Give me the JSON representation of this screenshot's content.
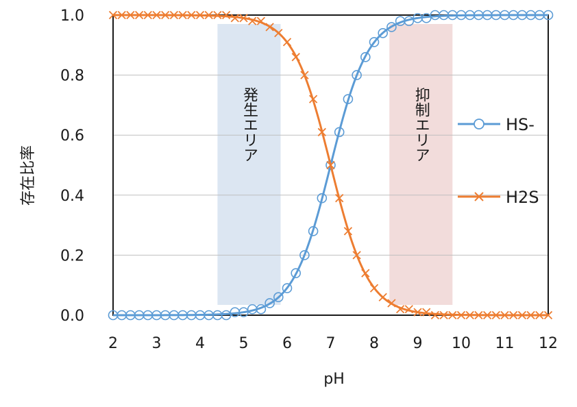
{
  "chart_data": {
    "type": "line",
    "xlabel": "pH",
    "ylabel": "存在比率",
    "xlim": [
      2,
      12
    ],
    "ylim": [
      0,
      1
    ],
    "xticks": [
      "2",
      "3",
      "4",
      "5",
      "6",
      "7",
      "8",
      "9",
      "10",
      "11",
      "12"
    ],
    "yticks": [
      "0.0",
      "0.2",
      "0.4",
      "0.6",
      "0.8",
      "1.0"
    ],
    "grid": "horizontal",
    "legend": "right",
    "pKa": 7.0,
    "series": [
      {
        "name": "HS-",
        "color": "#5b9bd5",
        "marker": "circle",
        "x": [
          2.0,
          2.2,
          2.4,
          2.6,
          2.8,
          3.0,
          3.2,
          3.4,
          3.6,
          3.8,
          4.0,
          4.2,
          4.4,
          4.6,
          4.8,
          5.0,
          5.2,
          5.4,
          5.6,
          5.8,
          6.0,
          6.2,
          6.4,
          6.6,
          6.8,
          7.0,
          7.2,
          7.4,
          7.6,
          7.8,
          8.0,
          8.2,
          8.4,
          8.6,
          8.8,
          9.0,
          9.2,
          9.4,
          9.6,
          9.8,
          10.0,
          10.2,
          10.4,
          10.6,
          10.8,
          11.0,
          11.2,
          11.4,
          11.6,
          11.8,
          12.0
        ],
        "y": [
          0.0,
          0.0,
          0.0,
          0.0,
          0.0,
          0.0,
          0.0,
          0.0,
          0.0,
          0.0,
          0.0,
          0.0,
          0.0,
          0.0,
          0.01,
          0.01,
          0.02,
          0.02,
          0.04,
          0.06,
          0.09,
          0.14,
          0.2,
          0.28,
          0.39,
          0.5,
          0.61,
          0.72,
          0.8,
          0.86,
          0.91,
          0.94,
          0.96,
          0.98,
          0.98,
          0.99,
          0.99,
          1.0,
          1.0,
          1.0,
          1.0,
          1.0,
          1.0,
          1.0,
          1.0,
          1.0,
          1.0,
          1.0,
          1.0,
          1.0,
          1.0
        ]
      },
      {
        "name": "H2S",
        "color": "#ed7d31",
        "marker": "x",
        "x": [
          2.0,
          2.2,
          2.4,
          2.6,
          2.8,
          3.0,
          3.2,
          3.4,
          3.6,
          3.8,
          4.0,
          4.2,
          4.4,
          4.6,
          4.8,
          5.0,
          5.2,
          5.4,
          5.6,
          5.8,
          6.0,
          6.2,
          6.4,
          6.6,
          6.8,
          7.0,
          7.2,
          7.4,
          7.6,
          7.8,
          8.0,
          8.2,
          8.4,
          8.6,
          8.8,
          9.0,
          9.2,
          9.4,
          9.6,
          9.8,
          10.0,
          10.2,
          10.4,
          10.6,
          10.8,
          11.0,
          11.2,
          11.4,
          11.6,
          11.8,
          12.0
        ],
        "y": [
          1.0,
          1.0,
          1.0,
          1.0,
          1.0,
          1.0,
          1.0,
          1.0,
          1.0,
          1.0,
          1.0,
          1.0,
          1.0,
          1.0,
          0.99,
          0.99,
          0.98,
          0.98,
          0.96,
          0.94,
          0.91,
          0.86,
          0.8,
          0.72,
          0.61,
          0.5,
          0.39,
          0.28,
          0.2,
          0.14,
          0.09,
          0.06,
          0.04,
          0.02,
          0.02,
          0.01,
          0.01,
          0.0,
          0.0,
          0.0,
          0.0,
          0.0,
          0.0,
          0.0,
          0.0,
          0.0,
          0.0,
          0.0,
          0.0,
          0.0,
          0.0
        ]
      }
    ],
    "bands": [
      {
        "label": "発生エリア",
        "x_range": [
          4.4,
          5.85
        ],
        "color": "#dce6f2"
      },
      {
        "label": "抑制エリア",
        "x_range": [
          8.35,
          9.8
        ],
        "color": "#f2dcdb"
      }
    ]
  }
}
